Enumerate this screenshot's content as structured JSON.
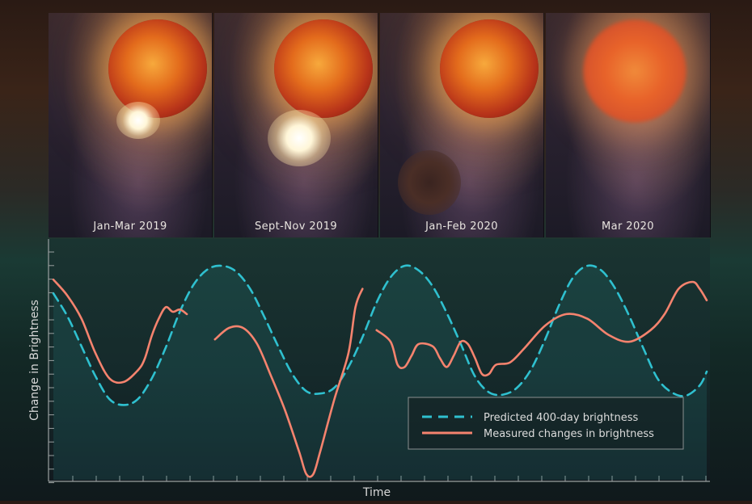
{
  "panels": [
    {
      "label": "Jan-Mar 2019"
    },
    {
      "label": "Sept-Nov  2019"
    },
    {
      "label": "Jan-Feb 2020"
    },
    {
      "label": "Mar 2020"
    }
  ],
  "chart_data": {
    "type": "line",
    "xlabel": "Time",
    "ylabel": "Change in Brightness",
    "grid": false,
    "legend_position": "bottom-right",
    "series": [
      {
        "name": "Predicted 400-day brightness",
        "color": "#2fc0cf",
        "style": "dashed",
        "points": [
          [
            0,
            0.52
          ],
          [
            2,
            0.32
          ],
          [
            4,
            0.06
          ],
          [
            6,
            -0.2
          ],
          [
            8,
            -0.4
          ],
          [
            10,
            -0.45
          ],
          [
            12,
            -0.4
          ],
          [
            14,
            -0.22
          ],
          [
            16,
            0.05
          ],
          [
            18,
            0.36
          ],
          [
            20,
            0.6
          ],
          [
            22,
            0.73
          ],
          [
            24,
            0.76
          ],
          [
            26,
            0.71
          ],
          [
            28,
            0.56
          ],
          [
            30,
            0.32
          ],
          [
            32,
            0.06
          ],
          [
            34,
            -0.18
          ],
          [
            36,
            -0.33
          ],
          [
            38,
            -0.35
          ],
          [
            40,
            -0.3
          ],
          [
            42,
            -0.12
          ],
          [
            44,
            0.14
          ],
          [
            46,
            0.44
          ],
          [
            48,
            0.66
          ],
          [
            50,
            0.76
          ],
          [
            52,
            0.72
          ],
          [
            54,
            0.58
          ],
          [
            56,
            0.35
          ],
          [
            58,
            0.08
          ],
          [
            60,
            -0.2
          ],
          [
            62,
            -0.34
          ],
          [
            64,
            -0.36
          ],
          [
            66,
            -0.3
          ],
          [
            68,
            -0.14
          ],
          [
            70,
            0.12
          ],
          [
            72,
            0.42
          ],
          [
            74,
            0.66
          ],
          [
            76,
            0.76
          ],
          [
            78,
            0.72
          ],
          [
            80,
            0.56
          ],
          [
            82,
            0.32
          ],
          [
            84,
            0.04
          ],
          [
            86,
            -0.22
          ],
          [
            88,
            -0.34
          ],
          [
            90,
            -0.37
          ],
          [
            92,
            -0.28
          ],
          [
            93,
            -0.16
          ]
        ]
      },
      {
        "name": "Measured changes in brightness",
        "color": "#f5836e",
        "style": "solid",
        "segments": [
          [
            [
              0,
              0.64
            ],
            [
              2,
              0.5
            ],
            [
              4,
              0.3
            ],
            [
              6,
              0.0
            ],
            [
              8,
              -0.22
            ],
            [
              10,
              -0.25
            ],
            [
              12,
              -0.15
            ],
            [
              13,
              -0.05
            ],
            [
              14,
              0.15
            ],
            [
              15,
              0.3
            ],
            [
              16,
              0.4
            ],
            [
              17,
              0.36
            ],
            [
              18,
              0.38
            ],
            [
              19,
              0.34
            ]
          ],
          [
            [
              23,
              0.12
            ],
            [
              25,
              0.22
            ],
            [
              27,
              0.22
            ],
            [
              29,
              0.08
            ],
            [
              31,
              -0.2
            ],
            [
              33,
              -0.5
            ],
            [
              35,
              -0.86
            ],
            [
              36,
              -1.05
            ],
            [
              37,
              -1.05
            ],
            [
              38,
              -0.85
            ],
            [
              40,
              -0.4
            ],
            [
              42,
              0.0
            ],
            [
              43,
              0.4
            ],
            [
              44,
              0.56
            ]
          ],
          [
            [
              46,
              0.2
            ],
            [
              48,
              0.1
            ],
            [
              49,
              -0.1
            ],
            [
              50,
              -0.12
            ],
            [
              51,
              -0.02
            ],
            [
              52,
              0.08
            ],
            [
              54,
              0.06
            ],
            [
              55,
              -0.04
            ],
            [
              56,
              -0.12
            ],
            [
              57,
              -0.02
            ],
            [
              58,
              0.1
            ],
            [
              59,
              0.08
            ],
            [
              60,
              -0.04
            ],
            [
              61,
              -0.18
            ],
            [
              62,
              -0.18
            ],
            [
              63,
              -0.1
            ],
            [
              65,
              -0.08
            ],
            [
              67,
              0.04
            ],
            [
              70,
              0.24
            ],
            [
              73,
              0.34
            ],
            [
              76,
              0.3
            ],
            [
              79,
              0.16
            ],
            [
              82,
              0.1
            ],
            [
              85,
              0.2
            ],
            [
              87,
              0.34
            ],
            [
              89,
              0.56
            ],
            [
              91,
              0.62
            ],
            [
              92,
              0.56
            ],
            [
              93,
              0.46
            ]
          ]
        ]
      }
    ],
    "xlim": [
      0,
      93
    ],
    "ylim": [
      -1.1,
      0.95
    ]
  }
}
